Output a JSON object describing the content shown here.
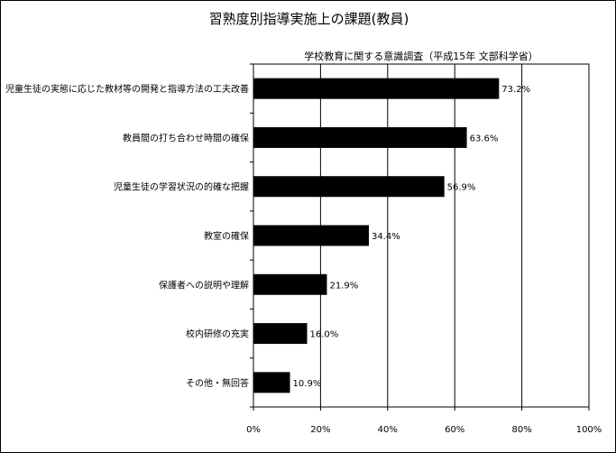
{
  "chart_data": {
    "type": "bar",
    "orientation": "horizontal",
    "title": "習熟度別指導実施上の課題(教員)",
    "subtitle": "学校教育に関する意識調査（平成15年 文部科学省）",
    "categories": [
      "児童生徒の実態に応じた教材等の開発と指導方法の工夫改善",
      "教員間の打ち合わせ時間の確保",
      "児童生徒の学習状況の的確な把握",
      "教室の確保",
      "保護者への説明や理解",
      "校内研修の充実",
      "その他・無回答"
    ],
    "values": [
      73.2,
      63.6,
      56.9,
      34.4,
      21.9,
      16.0,
      10.9
    ],
    "value_labels": [
      "73.2%",
      "63.6%",
      "56.9%",
      "34.4%",
      "21.9%",
      "16.0%",
      "10.9%"
    ],
    "xlim": [
      0,
      100
    ],
    "x_ticks": [
      0,
      20,
      40,
      60,
      80,
      100
    ],
    "x_tick_labels": [
      "0%",
      "20%",
      "40%",
      "60%",
      "80%",
      "100%"
    ],
    "grid": "vertical",
    "bar_color": "#000000"
  }
}
